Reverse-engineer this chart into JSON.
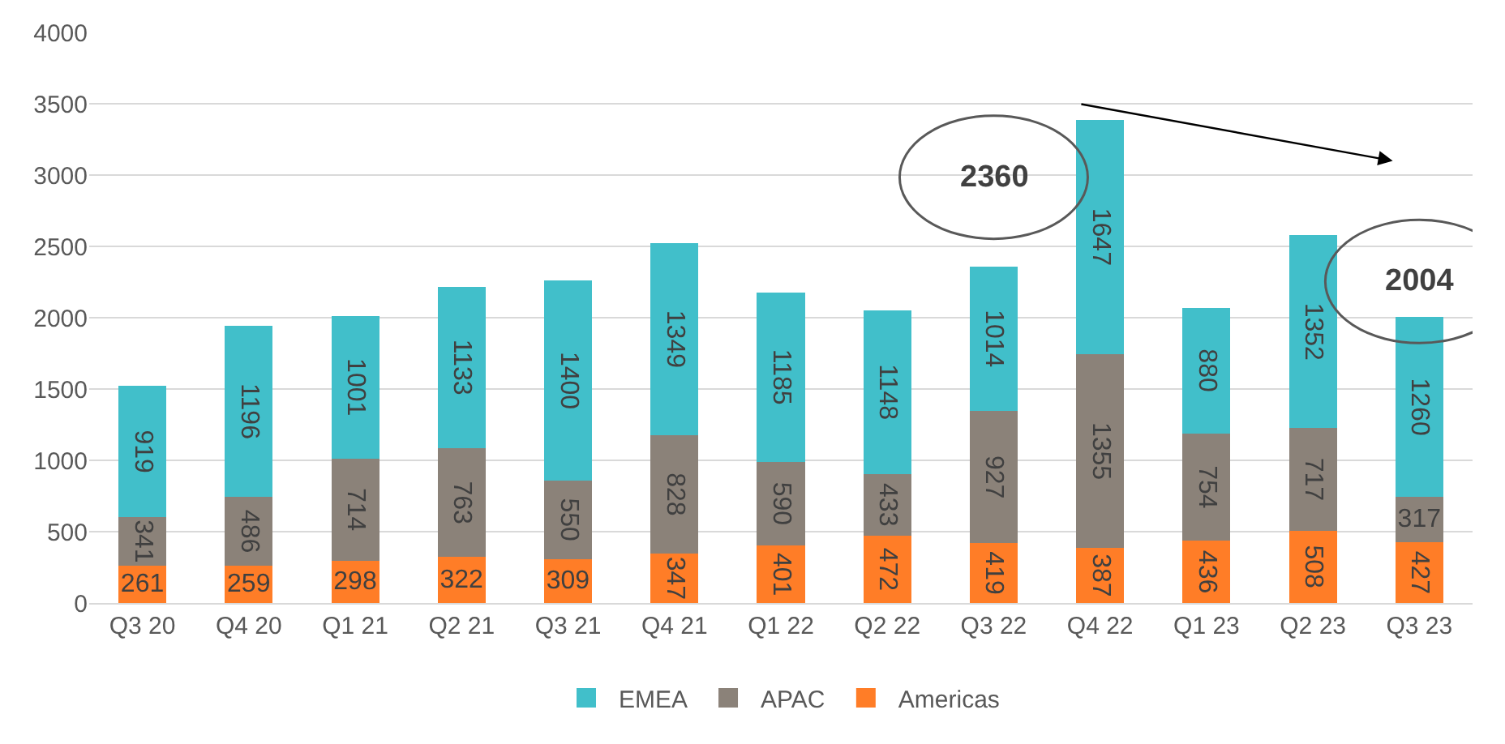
{
  "chart_data": {
    "type": "bar",
    "stacked": true,
    "categories": [
      "Q3 20",
      "Q4 20",
      "Q1 21",
      "Q2 21",
      "Q3 21",
      "Q4 21",
      "Q1 22",
      "Q2 22",
      "Q3 22",
      "Q4 22",
      "Q1 23",
      "Q2 23",
      "Q3 23"
    ],
    "series": [
      {
        "name": "Americas",
        "color": "#ff7d27",
        "values": [
          261,
          259,
          298,
          322,
          309,
          347,
          401,
          472,
          419,
          387,
          436,
          508,
          427
        ]
      },
      {
        "name": "APAC",
        "color": "#8b8279",
        "values": [
          341,
          486,
          714,
          763,
          550,
          828,
          590,
          433,
          927,
          1355,
          754,
          717,
          317
        ]
      },
      {
        "name": "EMEA",
        "color": "#41bfca",
        "values": [
          919,
          1196,
          1001,
          1133,
          1400,
          1349,
          1185,
          1148,
          1014,
          1647,
          880,
          1352,
          1260
        ]
      }
    ],
    "ylim": [
      0,
      4000
    ],
    "yticks": [
      0,
      500,
      1000,
      1500,
      2000,
      2500,
      3000,
      3500,
      4000
    ],
    "grid": "y",
    "legend": "bottom",
    "data_labels": true,
    "annotations": [
      {
        "text": "2360",
        "x": "Q3 22",
        "y": 2360
      },
      {
        "text": "2004",
        "x": "Q3 23",
        "y": 2004
      }
    ]
  }
}
